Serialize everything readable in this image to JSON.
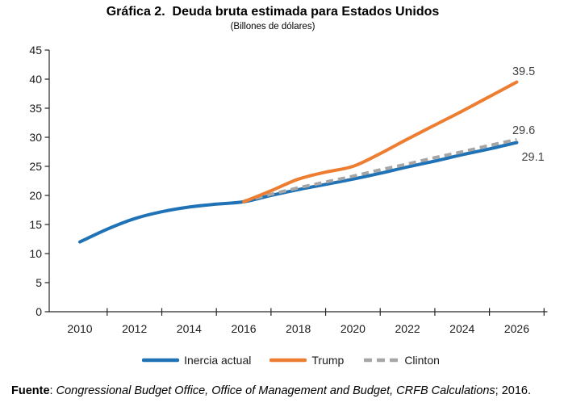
{
  "header": {
    "title": "Gráfica 2.  Deuda bruta estimada para Estados Unidos",
    "subtitle": "(Billones de dólares)"
  },
  "chart_data": {
    "type": "line",
    "title": "Gráfica 2.  Deuda bruta estimada para Estados Unidos",
    "subtitle": "(Billones de dólares)",
    "x": [
      2010,
      2011,
      2012,
      2013,
      2014,
      2015,
      2016,
      2017,
      2018,
      2019,
      2020,
      2021,
      2022,
      2023,
      2024,
      2025,
      2026
    ],
    "xtick_labels": [
      "2010",
      "2012",
      "2014",
      "2016",
      "2018",
      "2020",
      "2022",
      "2024",
      "2026"
    ],
    "ylim": [
      0,
      45
    ],
    "ytick_step": 5,
    "ytick_labels": [
      "0",
      "5",
      "10",
      "15",
      "20",
      "25",
      "30",
      "35",
      "40",
      "45"
    ],
    "grid": false,
    "legend_position": "bottom",
    "axis_color": "#262626",
    "data_label_color": "#404040",
    "series": [
      {
        "name": "Inercia actual",
        "color": "#1E72B5",
        "dash": false,
        "end_label": "29.1",
        "values": [
          12.0,
          14.2,
          16.0,
          17.2,
          18.0,
          18.5,
          18.9,
          20.0,
          21.0,
          21.9,
          22.8,
          23.8,
          24.9,
          25.9,
          27.0,
          28.0,
          29.1
        ]
      },
      {
        "name": "Trump",
        "color": "#ED7D31",
        "dash": false,
        "end_label": "39.5",
        "values": [
          null,
          null,
          null,
          null,
          null,
          null,
          18.9,
          20.8,
          22.8,
          24.0,
          25.0,
          27.2,
          29.7,
          32.1,
          34.5,
          37.0,
          39.5
        ]
      },
      {
        "name": "Clinton",
        "color": "#A6A6A6",
        "dash": true,
        "end_label": "29.6",
        "values": [
          null,
          null,
          null,
          null,
          null,
          null,
          19.0,
          20.2,
          21.3,
          22.3,
          23.3,
          24.4,
          25.4,
          26.5,
          27.5,
          28.6,
          29.6
        ]
      }
    ]
  },
  "footer": {
    "label": "Fuente",
    "separator": ": ",
    "sources": "Congressional Budget Office, Office of Management and Budget, CRFB Calculations",
    "suffix": "; 2016."
  }
}
